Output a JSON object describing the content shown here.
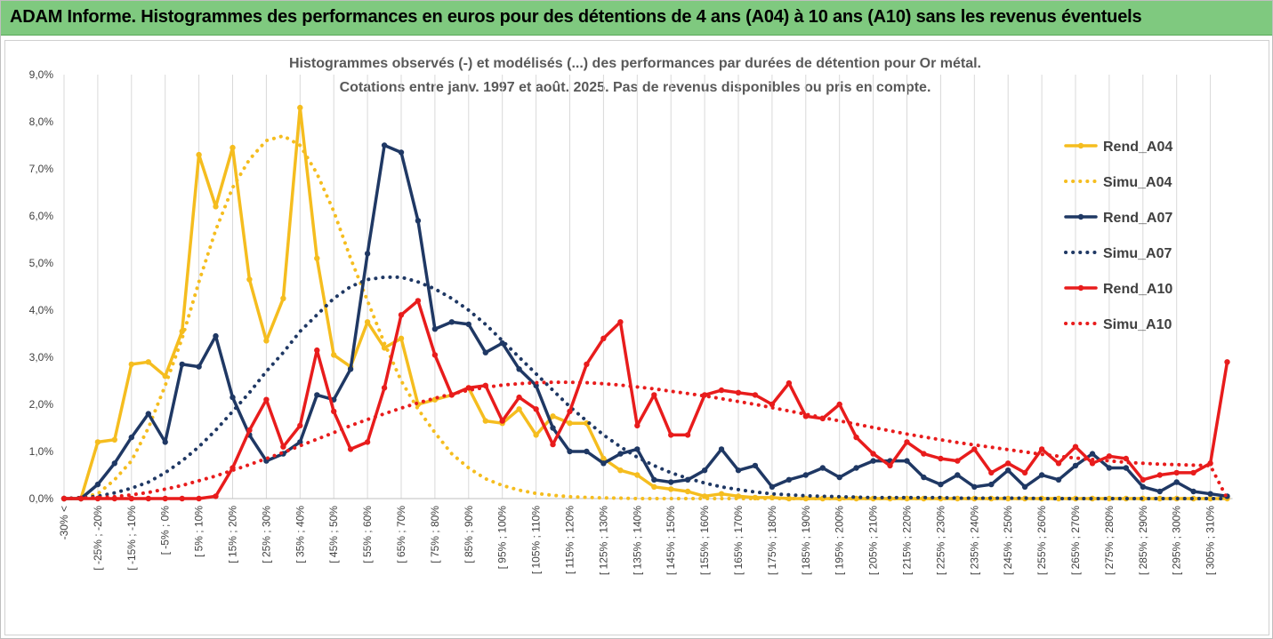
{
  "banner": {
    "title": "ADAM Informe. Histogrammes des performances en euros pour des détentions de 4 ans (A04) à 10 ans (A10) sans les revenus éventuels"
  },
  "colors": {
    "banner_bg": "#7fc97f",
    "a04": "#f5bd1f",
    "a07": "#1f3864",
    "a10": "#e81c1c"
  },
  "chart_data": {
    "type": "line",
    "title": "Histogrammes observés (-) et modélisés (...)  des performances par durées de détention pour Or métal.",
    "subtitle": "Cotations entre janv. 1997 et août. 2025. Pas de revenus disponibles ou pris en compte.",
    "xlabel": "",
    "ylabel": "",
    "ylim": [
      0,
      9
    ],
    "y_tick_labels": [
      "0,0%",
      "1,0%",
      "2,0%",
      "3,0%",
      "4,0%",
      "5,0%",
      "6,0%",
      "7,0%",
      "8,0%",
      "9,0%"
    ],
    "grid": "vertical",
    "legend_position": "right",
    "x_tick_labels": [
      "-30% <",
      "[ -25% ; -20%",
      "[ -15% ; -10%",
      "[ -5% ; 0%",
      "[ 5% ; 10%",
      "[ 15% ; 20%",
      "[ 25% ; 30%",
      "[ 35% ; 40%",
      "[ 45% ; 50%",
      "[ 55% ; 60%",
      "[ 65% ; 70%",
      "[ 75% ; 80%",
      "[ 85% ; 90%",
      "[ 95% ; 100%",
      "[ 105% ; 110%",
      "[ 115% ; 120%",
      "[ 125% ; 130%",
      "[ 135% ; 140%",
      "[ 145% ; 150%",
      "[ 155% ; 160%",
      "[ 165% ; 170%",
      "[ 175% ; 180%",
      "[ 185% ; 190%",
      "[ 195% ; 200%",
      "[ 205% ; 210%",
      "[ 215% ; 220%",
      "[ 225% ; 230%",
      "[ 235% ; 240%",
      "[ 245% ; 250%",
      "[ 255% ; 260%",
      "[ 265% ; 270%",
      "[ 275% ; 280%",
      "[ 285% ; 290%",
      "[ 295% ; 300%",
      "[ 305% ; 310%"
    ],
    "series": [
      {
        "name": "Rend_A04",
        "style": "solid",
        "values": [
          0,
          0,
          1.2,
          1.25,
          2.85,
          2.9,
          2.6,
          3.55,
          7.3,
          6.2,
          7.45,
          4.65,
          3.35,
          4.25,
          8.3,
          5.1,
          3.05,
          2.8,
          3.75,
          3.2,
          3.4,
          2.0,
          2.1,
          2.2,
          2.35,
          1.65,
          1.6,
          1.9,
          1.35,
          1.75,
          1.6,
          1.6,
          0.85,
          0.6,
          0.5,
          0.25,
          0.2,
          0.15,
          0.05,
          0.1,
          0.05,
          0.02,
          0.02,
          0,
          0,
          0,
          0,
          0,
          0,
          0,
          0,
          0,
          0,
          0,
          0,
          0,
          0,
          0,
          0,
          0,
          0,
          0,
          0,
          0,
          0,
          0,
          0,
          0,
          0,
          0
        ]
      },
      {
        "name": "Simu_A04",
        "style": "dotted",
        "values": [
          0,
          0.02,
          0.1,
          0.4,
          0.8,
          1.5,
          2.4,
          3.4,
          4.6,
          5.7,
          6.6,
          7.2,
          7.6,
          7.7,
          7.5,
          6.9,
          6.1,
          5.1,
          4.2,
          3.3,
          2.5,
          1.9,
          1.4,
          0.95,
          0.65,
          0.42,
          0.28,
          0.18,
          0.11,
          0.07,
          0.04,
          0.025,
          0.015,
          0.01,
          0,
          0,
          0,
          0,
          0,
          0,
          0,
          0,
          0,
          0,
          0,
          0,
          0,
          0,
          0,
          0,
          0,
          0,
          0,
          0,
          0,
          0,
          0,
          0,
          0,
          0,
          0,
          0,
          0,
          0,
          0,
          0,
          0,
          0,
          0,
          0
        ]
      },
      {
        "name": "Rend_A07",
        "style": "solid",
        "values": [
          0,
          0,
          0.3,
          0.75,
          1.3,
          1.8,
          1.2,
          2.85,
          2.8,
          3.45,
          2.15,
          1.35,
          0.8,
          0.95,
          1.2,
          2.2,
          2.1,
          2.75,
          5.2,
          7.5,
          7.35,
          5.9,
          3.6,
          3.75,
          3.7,
          3.1,
          3.3,
          2.75,
          2.4,
          1.5,
          1.0,
          1.0,
          0.75,
          0.95,
          1.05,
          0.4,
          0.35,
          0.4,
          0.6,
          1.05,
          0.6,
          0.7,
          0.25,
          0.4,
          0.5,
          0.65,
          0.45,
          0.65,
          0.8,
          0.8,
          0.8,
          0.45,
          0.3,
          0.5,
          0.25,
          0.3,
          0.6,
          0.25,
          0.5,
          0.4,
          0.7,
          0.95,
          0.65,
          0.65,
          0.25,
          0.15,
          0.35,
          0.15,
          0.1,
          0.05
        ]
      },
      {
        "name": "Simu_A07",
        "style": "dotted",
        "values": [
          0,
          0.02,
          0.05,
          0.12,
          0.22,
          0.35,
          0.55,
          0.8,
          1.1,
          1.45,
          1.85,
          2.25,
          2.7,
          3.1,
          3.55,
          3.9,
          4.25,
          4.5,
          4.65,
          4.7,
          4.7,
          4.6,
          4.45,
          4.25,
          4.0,
          3.7,
          3.35,
          3.0,
          2.65,
          2.3,
          1.95,
          1.65,
          1.35,
          1.1,
          0.88,
          0.7,
          0.55,
          0.43,
          0.33,
          0.25,
          0.19,
          0.14,
          0.1,
          0.08,
          0.06,
          0.05,
          0.04,
          0.03,
          0.02,
          0.02,
          0.02,
          0.02,
          0.02,
          0.01,
          0.01,
          0.01,
          0.01,
          0.01,
          0,
          0,
          0,
          0,
          0,
          0,
          0,
          0,
          0,
          0,
          0,
          0
        ]
      },
      {
        "name": "Rend_A10",
        "style": "solid",
        "values": [
          0,
          0,
          0,
          0,
          0,
          0,
          0,
          0,
          0,
          0.05,
          0.65,
          1.45,
          2.1,
          1.1,
          1.55,
          3.15,
          1.85,
          1.05,
          1.2,
          2.35,
          3.9,
          4.2,
          3.05,
          2.2,
          2.35,
          2.4,
          1.65,
          2.15,
          1.9,
          1.15,
          1.85,
          2.85,
          3.4,
          3.75,
          1.55,
          2.2,
          1.35,
          1.35,
          2.2,
          2.3,
          2.25,
          2.2,
          2.0,
          2.45,
          1.75,
          1.7,
          2.0,
          1.3,
          0.95,
          0.7,
          1.2,
          0.95,
          0.85,
          0.8,
          1.05,
          0.55,
          0.75,
          0.55,
          1.05,
          0.75,
          1.1,
          0.75,
          0.9,
          0.85,
          0.4,
          0.5,
          0.55,
          0.55,
          0.75,
          2.9
        ]
      },
      {
        "name": "Simu_A10",
        "style": "dotted",
        "values": [
          0,
          0.01,
          0.02,
          0.04,
          0.08,
          0.13,
          0.2,
          0.28,
          0.38,
          0.48,
          0.6,
          0.72,
          0.85,
          0.98,
          1.12,
          1.26,
          1.4,
          1.55,
          1.68,
          1.8,
          1.92,
          2.03,
          2.13,
          2.22,
          2.3,
          2.36,
          2.41,
          2.44,
          2.46,
          2.47,
          2.47,
          2.46,
          2.44,
          2.41,
          2.37,
          2.33,
          2.28,
          2.23,
          2.18,
          2.12,
          2.06,
          2.0,
          1.93,
          1.86,
          1.79,
          1.72,
          1.65,
          1.58,
          1.51,
          1.44,
          1.37,
          1.31,
          1.25,
          1.19,
          1.14,
          1.09,
          1.04,
          0.99,
          0.94,
          0.9,
          0.86,
          0.83,
          0.8,
          0.77,
          0.75,
          0.73,
          0.72,
          0.71,
          0.7,
          0
        ]
      }
    ]
  }
}
